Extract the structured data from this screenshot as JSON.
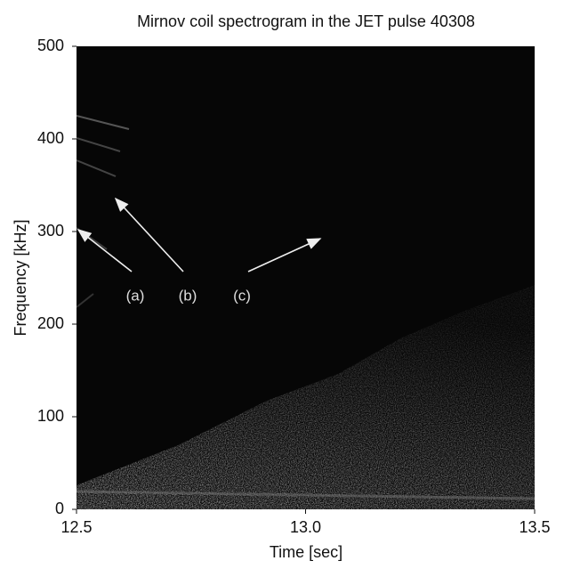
{
  "chart_data": {
    "type": "spectrogram",
    "title": "Mirnov coil spectrogram in the JET pulse 40308",
    "x_label": "Time [sec]",
    "y_label": "Frequency [kHz]",
    "xlim": [
      12.5,
      13.5
    ],
    "xticks": [
      12.5,
      {
        "value": 13,
        "label": "13.0"
      },
      13.5
    ],
    "ylim": [
      0,
      500
    ],
    "yticks": [
      0,
      100,
      200,
      300,
      400,
      500
    ],
    "annotations": [
      "(a)",
      "(b)",
      "(c)"
    ]
  }
}
